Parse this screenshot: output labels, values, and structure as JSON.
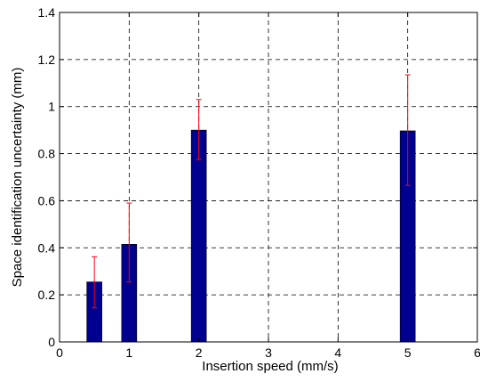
{
  "chart_data": {
    "type": "bar",
    "title": "",
    "xlabel": "Insertion speed (mm/s)",
    "ylabel": "Space identification uncertainty (mm)",
    "xlim": [
      0,
      6
    ],
    "ylim": [
      0,
      1.4
    ],
    "xticks": [
      0,
      1,
      2,
      3,
      4,
      5,
      6
    ],
    "xtick_labels": [
      "0",
      "1",
      "2",
      "3",
      "4",
      "5",
      "6"
    ],
    "yticks": [
      0,
      0.2,
      0.4,
      0.6,
      0.8,
      1.0,
      1.2,
      1.4
    ],
    "ytick_labels": [
      "0",
      "0.2",
      "0.4",
      "0.6",
      "0.8",
      "1",
      "1.2",
      "1.4"
    ],
    "grid": true,
    "series": [
      {
        "x": [
          0.5,
          1,
          2,
          5
        ],
        "values": [
          0.255,
          0.415,
          0.9,
          0.897
        ],
        "error_low": [
          0.145,
          0.255,
          0.775,
          0.665
        ],
        "error_high": [
          0.362,
          0.59,
          1.03,
          1.135
        ],
        "bar_color": "#00008f",
        "error_color": "#ff0000"
      }
    ]
  }
}
